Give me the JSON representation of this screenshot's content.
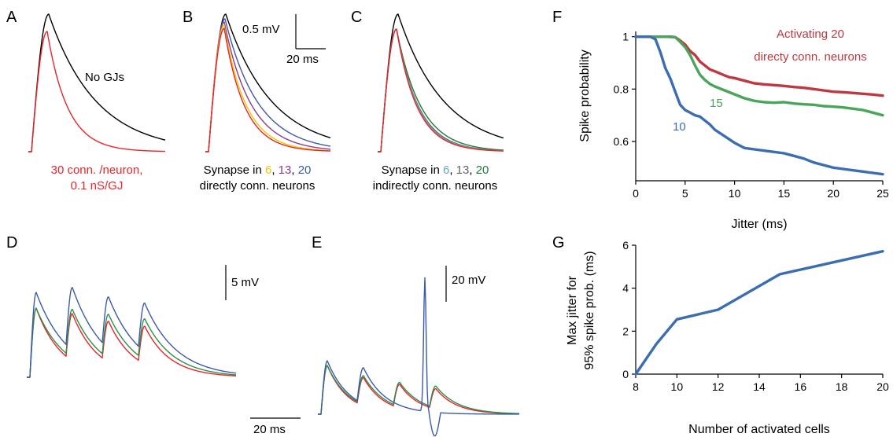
{
  "colors": {
    "black": "#000000",
    "red": "#e8252b",
    "darkred": "#c0383f",
    "blue": "#3d5aa8",
    "green": "#2e8f4b",
    "yellow": "#f2c700",
    "purple": "#8a3b8f",
    "teal": "#6aa9b8",
    "gray": "#666666",
    "dkgreen": "#1f7a3a",
    "steelblue": "#3b6db0",
    "fgreen": "#4aa45a"
  },
  "panels": {
    "A": {
      "label": "A",
      "no_gj_label": "No GJs",
      "caption_line1": "30 conn. /neuron,",
      "caption_line2": "0.1 nS/GJ"
    },
    "B": {
      "label": "B",
      "caption_prefix": "Synapse in ",
      "n1": "6",
      "sep1": ", ",
      "n2": "13",
      "sep2": ", ",
      "n3": "20",
      "caption_line2": "directly conn. neurons",
      "scale_v": "0.5 mV",
      "scale_t": "20 ms"
    },
    "C": {
      "label": "C",
      "caption_prefix": "Synapse in ",
      "n1": "6",
      "sep1": ", ",
      "n2": "13",
      "sep2": ", ",
      "n3": "20",
      "caption_line2": "indirectly conn. neurons"
    },
    "D": {
      "label": "D",
      "scale_v": "5 mV",
      "scale_t": "20 ms"
    },
    "E": {
      "label": "E",
      "scale_v": "20 mV"
    },
    "F": {
      "label": "F"
    },
    "G": {
      "label": "G"
    }
  },
  "chart_data": [
    {
      "panel": "F",
      "type": "line",
      "xlabel": "Jitter (ms)",
      "ylabel": "Spike probability",
      "xlim": [
        0,
        25
      ],
      "ylim": [
        0.45,
        1.02
      ],
      "xticks": [
        0,
        5,
        10,
        15,
        20,
        25
      ],
      "yticks": [
        0.6,
        0.8,
        1
      ],
      "ytick_labels": [
        "0.6",
        "0.8",
        "1"
      ],
      "legend_title_line1": "Activating 20",
      "legend_title_line2": "directy conn. neurons",
      "series": [
        {
          "name": "20",
          "color_key": "darkred",
          "x": [
            0,
            1,
            2,
            3,
            3.6,
            4,
            4.5,
            5,
            5.5,
            6,
            6.5,
            7,
            7.5,
            8,
            8.5,
            9,
            9.5,
            10,
            11,
            12,
            13,
            14,
            15,
            16,
            17,
            18,
            19,
            20,
            21,
            22,
            23,
            24,
            25
          ],
          "y": [
            1,
            1,
            1,
            1,
            1,
            0.998,
            0.985,
            0.97,
            0.945,
            0.93,
            0.905,
            0.89,
            0.875,
            0.868,
            0.86,
            0.852,
            0.845,
            0.842,
            0.832,
            0.822,
            0.818,
            0.815,
            0.812,
            0.808,
            0.805,
            0.8,
            0.795,
            0.79,
            0.788,
            0.785,
            0.782,
            0.779,
            0.775
          ]
        },
        {
          "name": "15",
          "label": "15",
          "color_key": "fgreen",
          "x": [
            0,
            1,
            2,
            3,
            4,
            4.5,
            5,
            5.5,
            6,
            6.5,
            7,
            7.5,
            8,
            9,
            10,
            11,
            12,
            13,
            14,
            15,
            16,
            17,
            18,
            19,
            20,
            21,
            22,
            23,
            24,
            25
          ],
          "y": [
            1,
            1,
            1,
            1,
            0.998,
            0.98,
            0.96,
            0.93,
            0.89,
            0.855,
            0.835,
            0.82,
            0.81,
            0.795,
            0.78,
            0.765,
            0.755,
            0.75,
            0.748,
            0.75,
            0.745,
            0.742,
            0.74,
            0.735,
            0.733,
            0.73,
            0.725,
            0.72,
            0.71,
            0.7
          ]
        },
        {
          "name": "10",
          "label": "10",
          "color_key": "steelblue",
          "x": [
            0,
            1,
            1.5,
            2,
            2.5,
            3,
            3.5,
            4,
            4.5,
            5,
            5.5,
            6,
            6.5,
            7,
            7.5,
            8,
            9,
            10,
            11,
            12,
            13,
            14,
            15,
            16,
            17,
            18,
            19,
            20,
            21,
            22,
            23,
            24,
            25
          ],
          "y": [
            1,
            1,
            1,
            0.99,
            0.94,
            0.88,
            0.84,
            0.79,
            0.74,
            0.72,
            0.71,
            0.7,
            0.695,
            0.68,
            0.665,
            0.645,
            0.62,
            0.595,
            0.575,
            0.57,
            0.565,
            0.56,
            0.555,
            0.545,
            0.535,
            0.52,
            0.51,
            0.5,
            0.495,
            0.49,
            0.485,
            0.48,
            0.475
          ]
        }
      ]
    },
    {
      "panel": "G",
      "type": "line",
      "xlabel": "Number of activated cells",
      "ylabel_line1": "Max jitter for",
      "ylabel_line2": "95% spike prob. (ms)",
      "xlim": [
        8,
        20
      ],
      "ylim": [
        0,
        6
      ],
      "xticks": [
        8,
        10,
        12,
        14,
        16,
        18,
        20
      ],
      "yticks": [
        0,
        2,
        4,
        6
      ],
      "series": [
        {
          "color_key": "steelblue",
          "x": [
            8,
            9,
            10,
            12,
            15,
            20
          ],
          "y": [
            0,
            1.4,
            2.55,
            3,
            4.65,
            5.72
          ]
        }
      ]
    }
  ]
}
